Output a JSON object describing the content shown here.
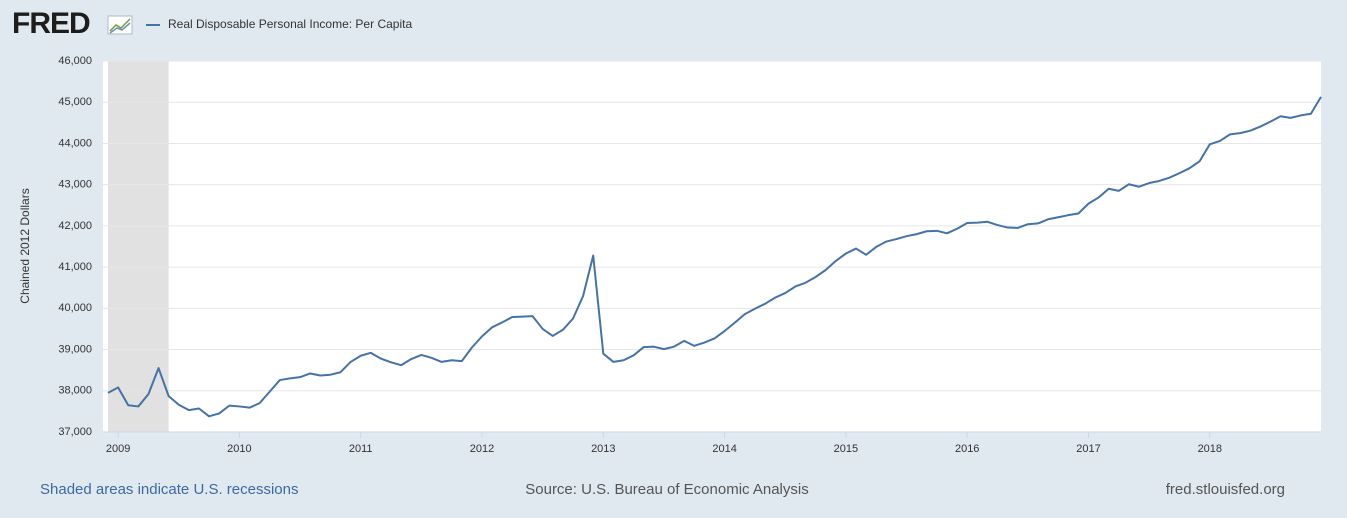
{
  "chart_data": {
    "type": "line",
    "logo": "FRED",
    "ylabel": "Chained 2012 Dollars",
    "note": "Shaded areas indicate U.S. recessions",
    "source": "Source: U.S. Bureau of Economic Analysis",
    "website": "fred.stlouisfed.org",
    "x": [
      "2008-12",
      "2009-01",
      "2009-02",
      "2009-03",
      "2009-04",
      "2009-05",
      "2009-06",
      "2009-07",
      "2009-08",
      "2009-09",
      "2009-10",
      "2009-11",
      "2009-12",
      "2010-01",
      "2010-02",
      "2010-03",
      "2010-04",
      "2010-05",
      "2010-06",
      "2010-07",
      "2010-08",
      "2010-09",
      "2010-10",
      "2010-11",
      "2010-12",
      "2011-01",
      "2011-02",
      "2011-03",
      "2011-04",
      "2011-05",
      "2011-06",
      "2011-07",
      "2011-08",
      "2011-09",
      "2011-10",
      "2011-11",
      "2011-12",
      "2012-01",
      "2012-02",
      "2012-03",
      "2012-04",
      "2012-05",
      "2012-06",
      "2012-07",
      "2012-08",
      "2012-09",
      "2012-10",
      "2012-11",
      "2012-12",
      "2013-01",
      "2013-02",
      "2013-03",
      "2013-04",
      "2013-05",
      "2013-06",
      "2013-07",
      "2013-08",
      "2013-09",
      "2013-10",
      "2013-11",
      "2013-12",
      "2014-01",
      "2014-02",
      "2014-03",
      "2014-04",
      "2014-05",
      "2014-06",
      "2014-07",
      "2014-08",
      "2014-09",
      "2014-10",
      "2014-11",
      "2014-12",
      "2015-01",
      "2015-02",
      "2015-03",
      "2015-04",
      "2015-05",
      "2015-06",
      "2015-07",
      "2015-08",
      "2015-09",
      "2015-10",
      "2015-11",
      "2015-12",
      "2016-01",
      "2016-02",
      "2016-03",
      "2016-04",
      "2016-05",
      "2016-06",
      "2016-07",
      "2016-08",
      "2016-09",
      "2016-10",
      "2016-11",
      "2016-12",
      "2017-01",
      "2017-02",
      "2017-03",
      "2017-04",
      "2017-05",
      "2017-06",
      "2017-07",
      "2017-08",
      "2017-09",
      "2017-10",
      "2017-11",
      "2017-12",
      "2018-01",
      "2018-02",
      "2018-03",
      "2018-04",
      "2018-05",
      "2018-06",
      "2018-07",
      "2018-08",
      "2018-09",
      "2018-10",
      "2018-11",
      "2018-12"
    ],
    "series": [
      {
        "name": "Real Disposable Personal Income: Per Capita",
        "color": "#4572a7",
        "values": [
          37950,
          38080,
          37650,
          37620,
          37920,
          38550,
          37870,
          37660,
          37530,
          37570,
          37380,
          37450,
          37640,
          37620,
          37590,
          37700,
          37980,
          38260,
          38300,
          38330,
          38420,
          38370,
          38390,
          38450,
          38700,
          38850,
          38920,
          38780,
          38690,
          38620,
          38770,
          38870,
          38800,
          38700,
          38740,
          38720,
          39050,
          39320,
          39540,
          39660,
          39790,
          39800,
          39810,
          39500,
          39330,
          39480,
          39750,
          40300,
          41280,
          38900,
          38700,
          38740,
          38860,
          39060,
          39070,
          39010,
          39070,
          39210,
          39090,
          39170,
          39270,
          39450,
          39650,
          39860,
          39990,
          40110,
          40260,
          40370,
          40530,
          40620,
          40760,
          40930,
          41150,
          41330,
          41450,
          41300,
          41490,
          41620,
          41680,
          41750,
          41800,
          41870,
          41880,
          41820,
          41930,
          42070,
          42080,
          42100,
          42020,
          41960,
          41950,
          42040,
          42060,
          42160,
          42210,
          42260,
          42300,
          42540,
          42690,
          42900,
          42850,
          43010,
          42950,
          43040,
          43090,
          43170,
          43280,
          43400,
          43570,
          43980,
          44060,
          44220,
          44250,
          44310,
          44410,
          44530,
          44660,
          44620,
          44680,
          44720,
          45130
        ]
      }
    ],
    "recessions": [
      {
        "start": "2008-12",
        "end": "2009-06"
      }
    ],
    "xlim": [
      "2008-12",
      "2018-12"
    ],
    "xticks": [
      {
        "value": "2009-01",
        "label": "2009"
      },
      {
        "value": "2010-01",
        "label": "2010"
      },
      {
        "value": "2011-01",
        "label": "2011"
      },
      {
        "value": "2012-01",
        "label": "2012"
      },
      {
        "value": "2013-01",
        "label": "2013"
      },
      {
        "value": "2014-01",
        "label": "2014"
      },
      {
        "value": "2015-01",
        "label": "2015"
      },
      {
        "value": "2016-01",
        "label": "2016"
      },
      {
        "value": "2017-01",
        "label": "2017"
      },
      {
        "value": "2018-01",
        "label": "2018"
      }
    ],
    "ylim": [
      37000,
      46000
    ],
    "yticks": [
      {
        "value": 37000,
        "label": "37,000"
      },
      {
        "value": 38000,
        "label": "38,000"
      },
      {
        "value": 39000,
        "label": "39,000"
      },
      {
        "value": 40000,
        "label": "40,000"
      },
      {
        "value": 41000,
        "label": "41,000"
      },
      {
        "value": 42000,
        "label": "42,000"
      },
      {
        "value": 43000,
        "label": "43,000"
      },
      {
        "value": 44000,
        "label": "44,000"
      },
      {
        "value": 45000,
        "label": "45,000"
      },
      {
        "value": 46000,
        "label": "46,000"
      }
    ],
    "grid": true
  }
}
